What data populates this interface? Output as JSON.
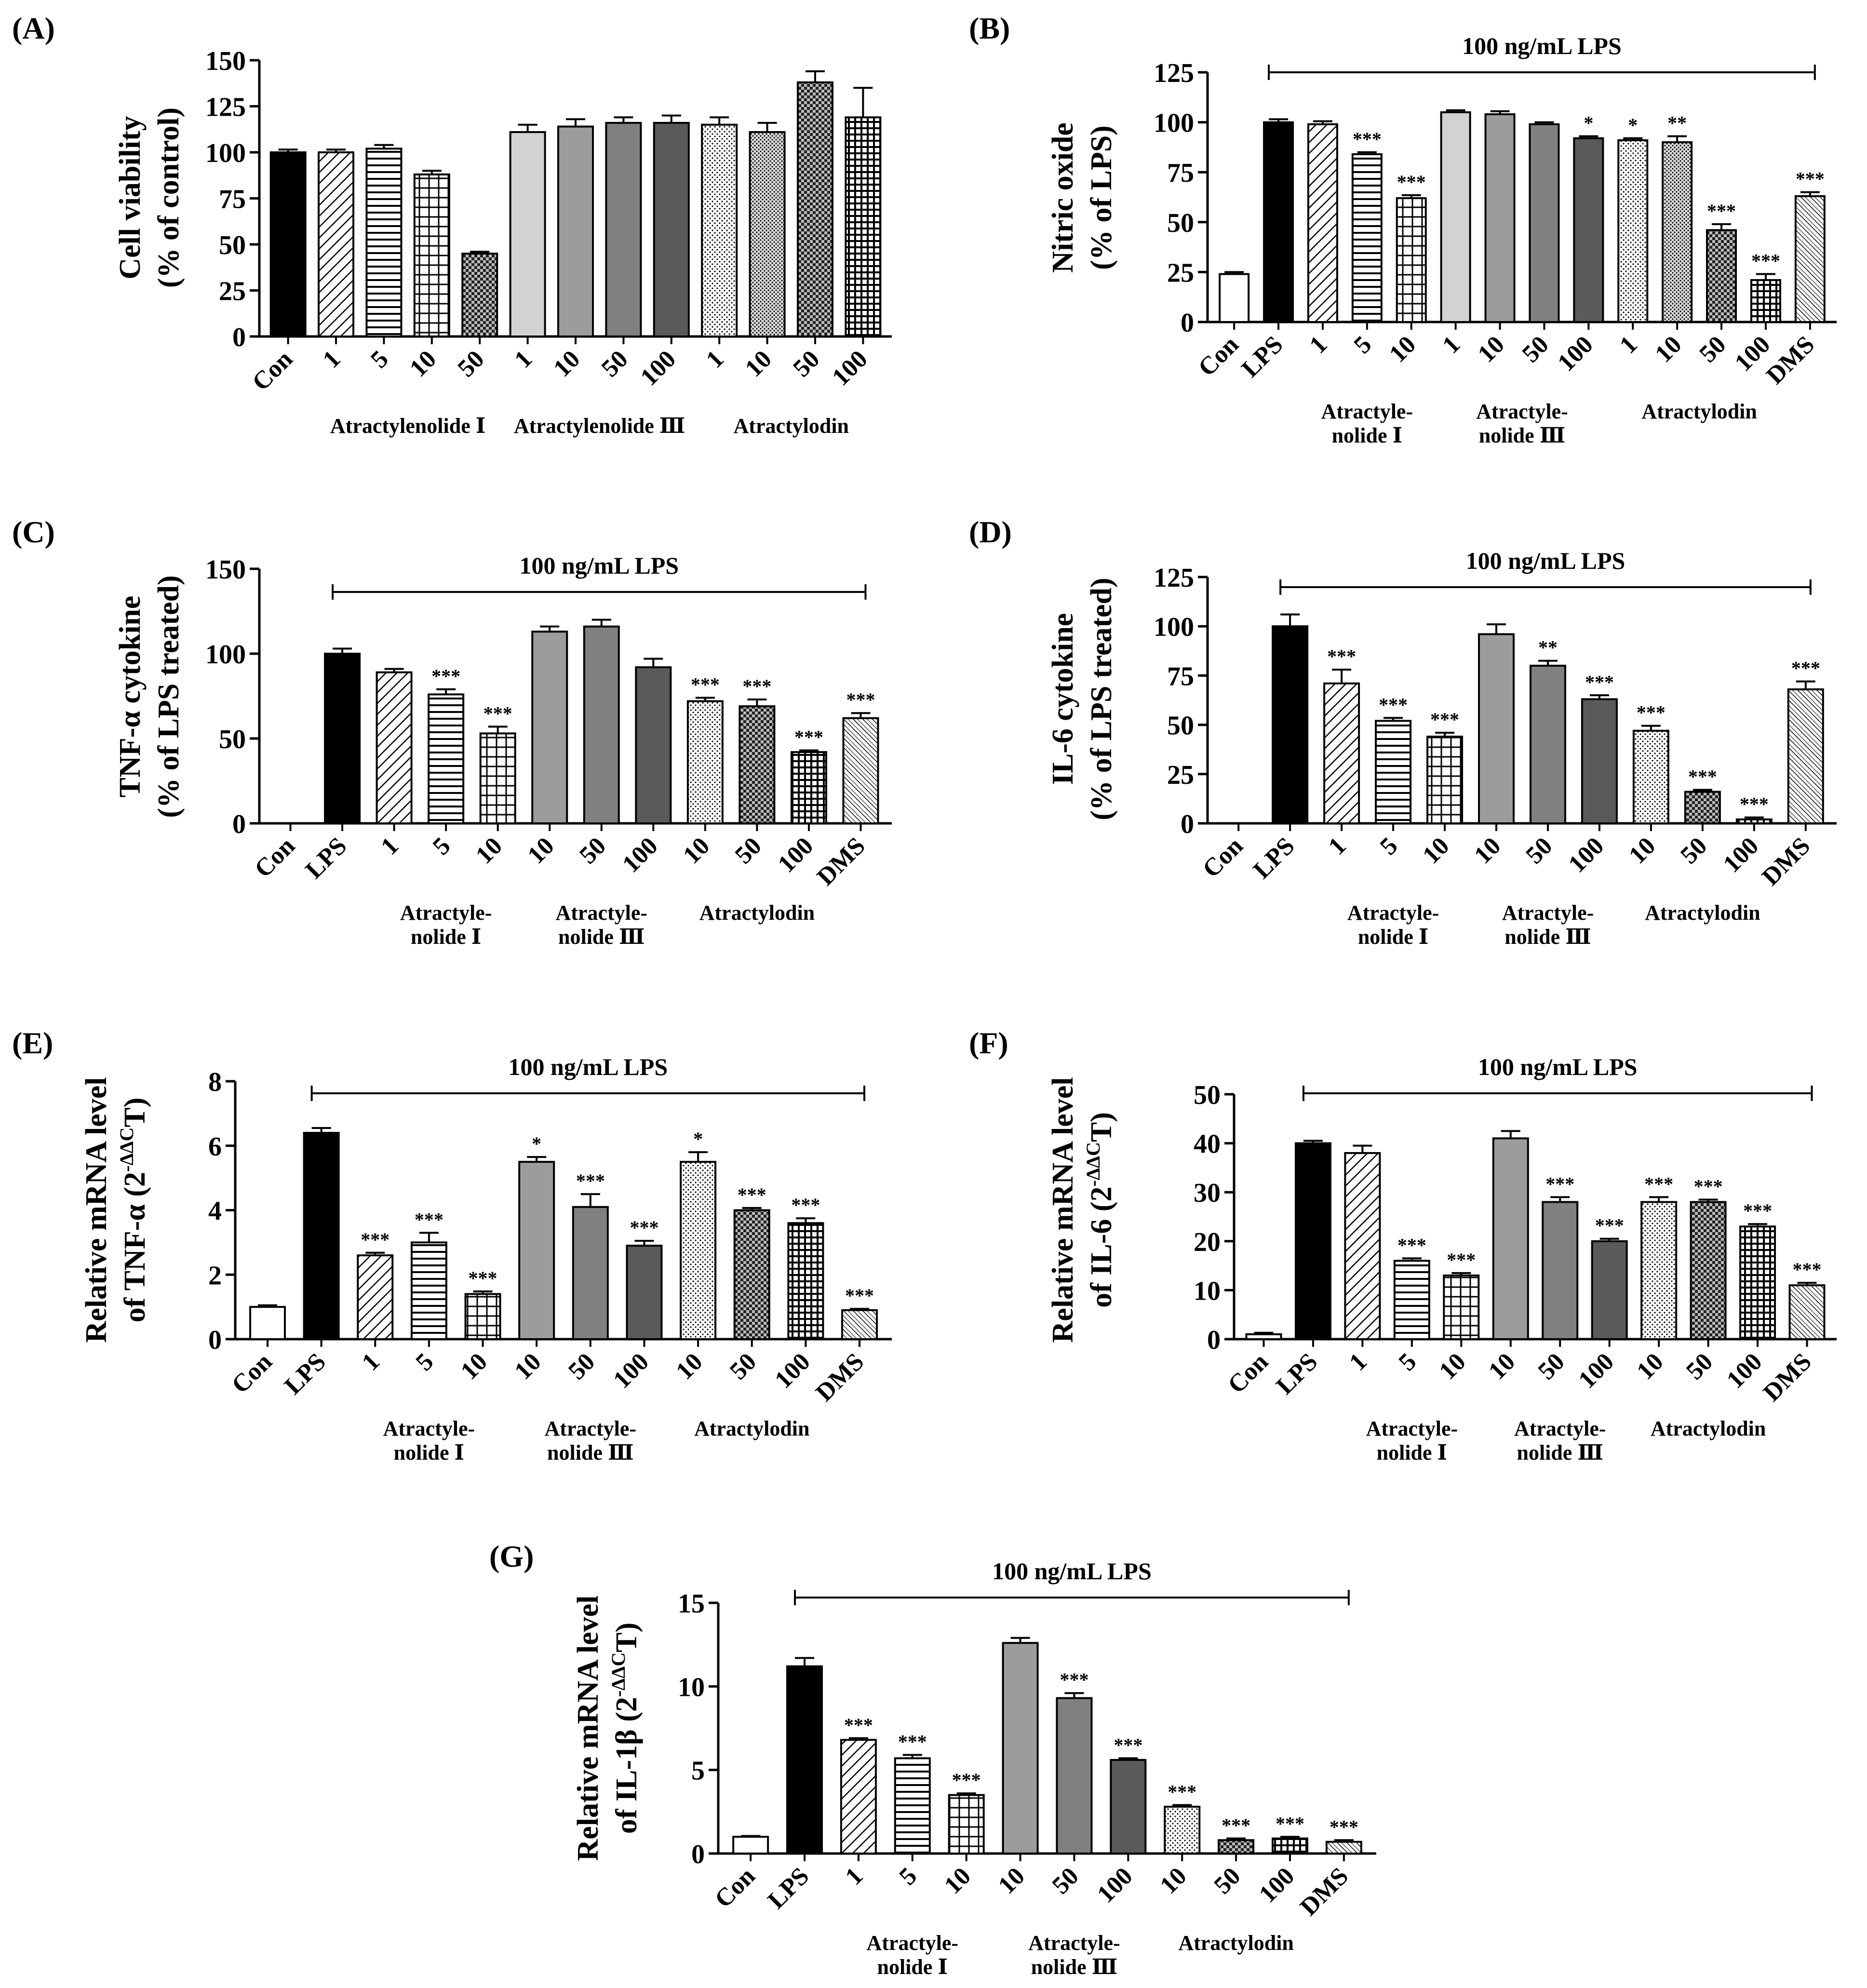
{
  "colors": {
    "ink": "#000000",
    "light_gray": "#d2d2d2",
    "mid_gray": "#9c9c9c",
    "gray": "#808080",
    "dark_gray": "#5a5a5a"
  },
  "chart_data": [
    {
      "panel": "(A)",
      "type": "bar",
      "ylabel_lines": [
        "Cell viability",
        "(% of control)"
      ],
      "ylim": [
        0,
        150
      ],
      "yticks": [
        "0",
        "25",
        "50",
        "75",
        "100",
        "125",
        "150"
      ],
      "categories": [
        "Con",
        "1",
        "5",
        "10",
        "50",
        "1",
        "10",
        "50",
        "100",
        "1",
        "10",
        "50",
        "100"
      ],
      "values": [
        100,
        100,
        102,
        88,
        45,
        111,
        114,
        116,
        116,
        115,
        111,
        138,
        119
      ],
      "errors": [
        1.5,
        1.5,
        2,
        2,
        1,
        4,
        4,
        3,
        4,
        4,
        5,
        6,
        16
      ],
      "patterns": [
        "black",
        "diag",
        "horiz",
        "grid",
        "check",
        "lightgray",
        "midgray",
        "gray",
        "darkgray",
        "dots",
        "dots2",
        "check",
        "plaid"
      ],
      "stars": [
        "",
        "",
        "",
        "",
        "",
        "",
        "",
        "",
        "",
        "",
        "",
        "",
        ""
      ],
      "lps_label": "",
      "groups": [
        {
          "lines": [
            "Atractylenolide Ⅰ"
          ],
          "from": 1,
          "to": 4
        },
        {
          "lines": [
            "Atractylenolide Ⅲ"
          ],
          "from": 5,
          "to": 8
        },
        {
          "lines": [
            "Atractylodin"
          ],
          "from": 9,
          "to": 12
        }
      ]
    },
    {
      "panel": "(B)",
      "type": "bar",
      "ylabel_lines": [
        "Nitric oxide",
        "(% of LPS)"
      ],
      "ylim": [
        0,
        125
      ],
      "yticks": [
        "0",
        "25",
        "50",
        "75",
        "100",
        "125"
      ],
      "categories": [
        "Con",
        "LPS",
        "1",
        "5",
        "10",
        "1",
        "10",
        "50",
        "100",
        "1",
        "10",
        "50",
        "100",
        "DMS"
      ],
      "values": [
        24,
        100,
        99,
        84,
        62,
        105,
        104,
        99,
        92,
        91,
        90,
        46,
        21,
        63
      ],
      "errors": [
        1,
        1.5,
        1.5,
        1,
        1.5,
        1,
        1.5,
        1,
        1,
        1,
        3,
        3,
        3,
        2
      ],
      "patterns": [
        "white",
        "black",
        "diag",
        "horiz",
        "grid",
        "lightgray",
        "midgray",
        "gray",
        "darkgray",
        "dots",
        "dots2",
        "check",
        "plaid",
        "diag2"
      ],
      "stars": [
        "",
        "",
        "",
        "***",
        "***",
        "",
        "",
        "",
        "*",
        "*",
        "**",
        "***",
        "***",
        "***"
      ],
      "lps_label": "100 ng/mL LPS",
      "groups": [
        {
          "lines": [
            "Atractyle-",
            "nolide Ⅰ"
          ],
          "from": 2,
          "to": 4
        },
        {
          "lines": [
            "Atractyle-",
            "nolide Ⅲ"
          ],
          "from": 5,
          "to": 8
        },
        {
          "lines": [
            "Atractylodin"
          ],
          "from": 9,
          "to": 12
        }
      ]
    },
    {
      "panel": "(C)",
      "type": "bar",
      "ylabel_lines": [
        "TNF-α cytokine",
        "(% of LPS treated)"
      ],
      "ylim": [
        0,
        150
      ],
      "yticks": [
        "0",
        "50",
        "100",
        "150"
      ],
      "categories": [
        "Con",
        "LPS",
        "1",
        "5",
        "10",
        "10",
        "50",
        "100",
        "10",
        "50",
        "100",
        "DMS"
      ],
      "values": [
        0,
        100,
        89,
        76,
        53,
        113,
        116,
        92,
        72,
        69,
        42,
        62
      ],
      "errors": [
        0,
        3,
        2,
        3,
        4,
        3,
        4,
        5,
        2,
        4,
        1,
        3
      ],
      "patterns": [
        "white",
        "black",
        "diag",
        "horiz",
        "grid",
        "midgray",
        "gray",
        "darkgray",
        "dots",
        "check",
        "plaid",
        "diag2"
      ],
      "stars": [
        "",
        "",
        "",
        "***",
        "***",
        "",
        "",
        "",
        "***",
        "***",
        "***",
        "***"
      ],
      "lps_label": "100 ng/mL LPS",
      "groups": [
        {
          "lines": [
            "Atractyle-",
            "nolide Ⅰ"
          ],
          "from": 2,
          "to": 4
        },
        {
          "lines": [
            "Atractyle-",
            "nolide Ⅲ"
          ],
          "from": 5,
          "to": 7
        },
        {
          "lines": [
            "Atractylodin"
          ],
          "from": 8,
          "to": 10
        }
      ]
    },
    {
      "panel": "(D)",
      "type": "bar",
      "ylabel_lines": [
        "IL-6 cytokine",
        "(% of LPS treated)"
      ],
      "ylim": [
        0,
        125
      ],
      "yticks": [
        "0",
        "25",
        "50",
        "75",
        "100",
        "125"
      ],
      "categories": [
        "Con",
        "LPS",
        "1",
        "5",
        "10",
        "10",
        "50",
        "100",
        "10",
        "50",
        "100",
        "DMS"
      ],
      "values": [
        0,
        100,
        71,
        52,
        44,
        96,
        80,
        63,
        47,
        16,
        2,
        68
      ],
      "errors": [
        0,
        6,
        7,
        1.5,
        2,
        5,
        2.5,
        2,
        2.5,
        1,
        1,
        4
      ],
      "patterns": [
        "white",
        "black",
        "diag",
        "horiz",
        "grid",
        "midgray",
        "gray",
        "darkgray",
        "dots",
        "check",
        "plaid",
        "diag2"
      ],
      "stars": [
        "",
        "",
        "***",
        "***",
        "***",
        "",
        "**",
        "***",
        "***",
        "***",
        "***",
        "***"
      ],
      "lps_label": "100 ng/mL LPS",
      "groups": [
        {
          "lines": [
            "Atractyle-",
            "nolide Ⅰ"
          ],
          "from": 2,
          "to": 4
        },
        {
          "lines": [
            "Atractyle-",
            "nolide Ⅲ"
          ],
          "from": 5,
          "to": 7
        },
        {
          "lines": [
            "Atractylodin"
          ],
          "from": 8,
          "to": 10
        }
      ]
    },
    {
      "panel": "(E)",
      "type": "bar",
      "ylabel_lines": [
        "Relative mRNA level",
        "of TNF-α (2^-ΔΔCT)"
      ],
      "ylabel_prefix": "of TNF-α (2",
      "ylabel_sup": "-ΔΔC",
      "ylabel_suffix": "T)",
      "ylim": [
        0,
        8
      ],
      "yticks": [
        "0",
        "2",
        "4",
        "6",
        "8"
      ],
      "categories": [
        "Con",
        "LPS",
        "1",
        "5",
        "10",
        "10",
        "50",
        "100",
        "10",
        "50",
        "100",
        "DMS"
      ],
      "values": [
        1.0,
        6.4,
        2.6,
        3.0,
        1.4,
        5.5,
        4.1,
        2.9,
        5.5,
        4.0,
        3.6,
        0.9
      ],
      "errors": [
        0.05,
        0.15,
        0.08,
        0.3,
        0.08,
        0.15,
        0.4,
        0.15,
        0.3,
        0.07,
        0.15,
        0.04
      ],
      "patterns": [
        "white",
        "black",
        "diag",
        "horiz",
        "grid",
        "midgray",
        "gray",
        "darkgray",
        "dots",
        "check",
        "plaid",
        "diag2"
      ],
      "stars": [
        "",
        "",
        "***",
        "***",
        "***",
        "*",
        "***",
        "***",
        "*",
        "***",
        "***",
        "***"
      ],
      "lps_label": "100 ng/mL LPS",
      "groups": [
        {
          "lines": [
            "Atractyle-",
            "nolide Ⅰ"
          ],
          "from": 2,
          "to": 4
        },
        {
          "lines": [
            "Atractyle-",
            "nolide Ⅲ"
          ],
          "from": 5,
          "to": 7
        },
        {
          "lines": [
            "Atractylodin"
          ],
          "from": 8,
          "to": 10
        }
      ]
    },
    {
      "panel": "(F)",
      "type": "bar",
      "ylabel_lines": [
        "Relative mRNA level",
        "of IL-6 (2^-ΔΔCT)"
      ],
      "ylabel_prefix": "of IL-6 (2",
      "ylabel_sup": "-ΔΔC",
      "ylabel_suffix": "T)",
      "ylim": [
        0,
        50
      ],
      "yticks": [
        "0",
        "10",
        "20",
        "30",
        "40",
        "50"
      ],
      "categories": [
        "Con",
        "LPS",
        "1",
        "5",
        "10",
        "10",
        "50",
        "100",
        "10",
        "50",
        "100",
        "DMS"
      ],
      "values": [
        1,
        40,
        38,
        16,
        13,
        41,
        28,
        20,
        28,
        28,
        23,
        11
      ],
      "errors": [
        0.3,
        0.5,
        1.5,
        0.5,
        0.5,
        1.5,
        1,
        0.5,
        1,
        0.5,
        0.5,
        0.5
      ],
      "patterns": [
        "white",
        "black",
        "diag",
        "horiz",
        "grid",
        "midgray",
        "gray",
        "darkgray",
        "dots",
        "check",
        "plaid",
        "diag2"
      ],
      "stars": [
        "",
        "",
        "",
        "***",
        "***",
        "",
        "***",
        "***",
        "***",
        "***",
        "***",
        "***"
      ],
      "lps_label": "100 ng/mL LPS",
      "groups": [
        {
          "lines": [
            "Atractyle-",
            "nolide Ⅰ"
          ],
          "from": 2,
          "to": 4
        },
        {
          "lines": [
            "Atractyle-",
            "nolide Ⅲ"
          ],
          "from": 5,
          "to": 7
        },
        {
          "lines": [
            "Atractylodin"
          ],
          "from": 8,
          "to": 10
        }
      ]
    },
    {
      "panel": "(G)",
      "type": "bar",
      "ylabel_lines": [
        "Relative mRNA level",
        "of IL-1β (2^-ΔΔCT)"
      ],
      "ylabel_prefix": "of IL-1β (2",
      "ylabel_sup": "-ΔΔC",
      "ylabel_suffix": "T)",
      "ylim": [
        0,
        15
      ],
      "yticks": [
        "0",
        "5",
        "10",
        "15"
      ],
      "categories": [
        "Con",
        "LPS",
        "1",
        "5",
        "10",
        "10",
        "50",
        "100",
        "10",
        "50",
        "100",
        "DMS"
      ],
      "values": [
        1.0,
        11.2,
        6.8,
        5.7,
        3.5,
        12.6,
        9.3,
        5.6,
        2.8,
        0.8,
        0.9,
        0.7
      ],
      "errors": [
        0.05,
        0.5,
        0.1,
        0.2,
        0.1,
        0.3,
        0.3,
        0.1,
        0.1,
        0.1,
        0.1,
        0.1
      ],
      "patterns": [
        "white",
        "black",
        "diag",
        "horiz",
        "grid",
        "midgray",
        "gray",
        "darkgray",
        "dots",
        "check",
        "plaid",
        "diag2"
      ],
      "stars": [
        "",
        "",
        "***",
        "***",
        "***",
        "",
        "***",
        "***",
        "***",
        "***",
        "***",
        "***"
      ],
      "lps_label": "100 ng/mL LPS",
      "groups": [
        {
          "lines": [
            "Atractyle-",
            "nolide Ⅰ"
          ],
          "from": 2,
          "to": 4
        },
        {
          "lines": [
            "Atractyle-",
            "nolide Ⅲ"
          ],
          "from": 5,
          "to": 7
        },
        {
          "lines": [
            "Atractylodin"
          ],
          "from": 8,
          "to": 10
        }
      ]
    }
  ]
}
